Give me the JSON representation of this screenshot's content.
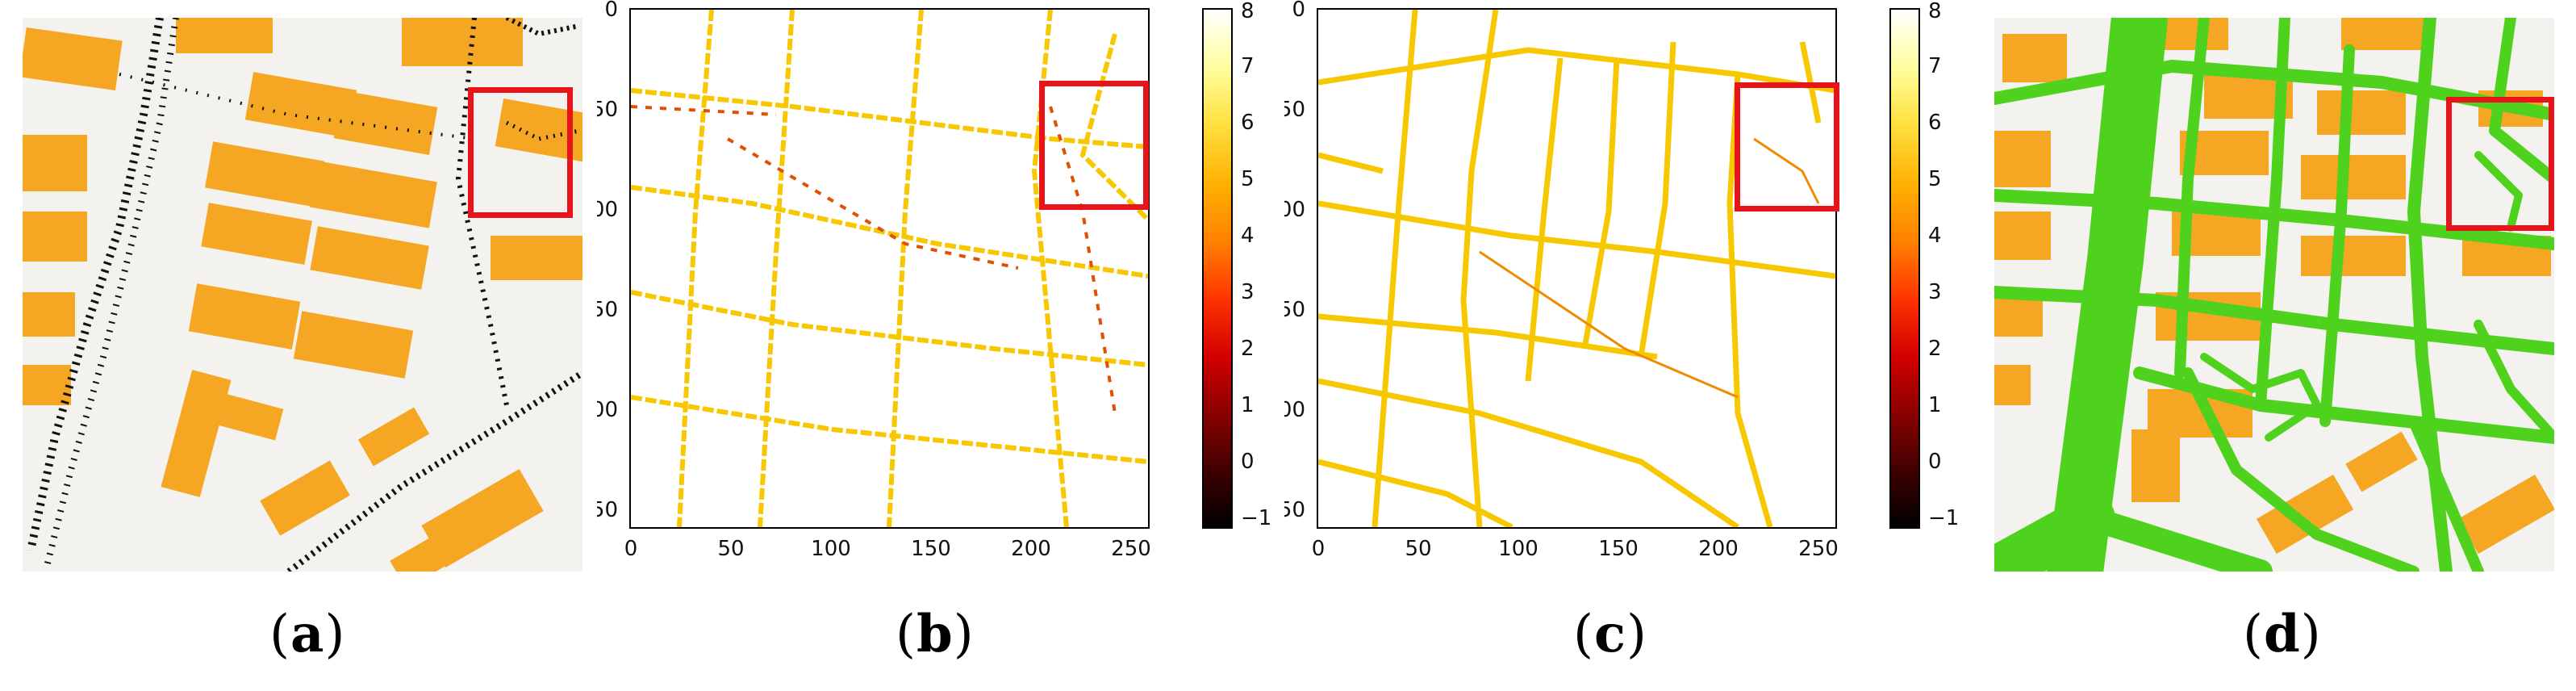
{
  "panels": [
    {
      "id": "a",
      "caption": "a"
    },
    {
      "id": "b",
      "caption": "b"
    },
    {
      "id": "c",
      "caption": "c"
    },
    {
      "id": "d",
      "caption": "d"
    }
  ],
  "axes": {
    "x_ticks": [
      "0",
      "50",
      "100",
      "150",
      "200",
      "250"
    ],
    "y_ticks": [
      "0",
      "50",
      "100",
      "150",
      "200",
      "250"
    ]
  },
  "colorbar": {
    "ticks": [
      "8",
      "7",
      "6",
      "5",
      "4",
      "3",
      "2",
      "1",
      "0",
      "−1"
    ],
    "range": [
      -1,
      8
    ],
    "colormap": "hot"
  },
  "colors": {
    "building": "#f5a623",
    "ground": "#f4f2ee",
    "road_green": "#4fd21e",
    "highlight": "#e8141c",
    "heat_line": "#f0c000",
    "heat_dark": "#e05000"
  }
}
